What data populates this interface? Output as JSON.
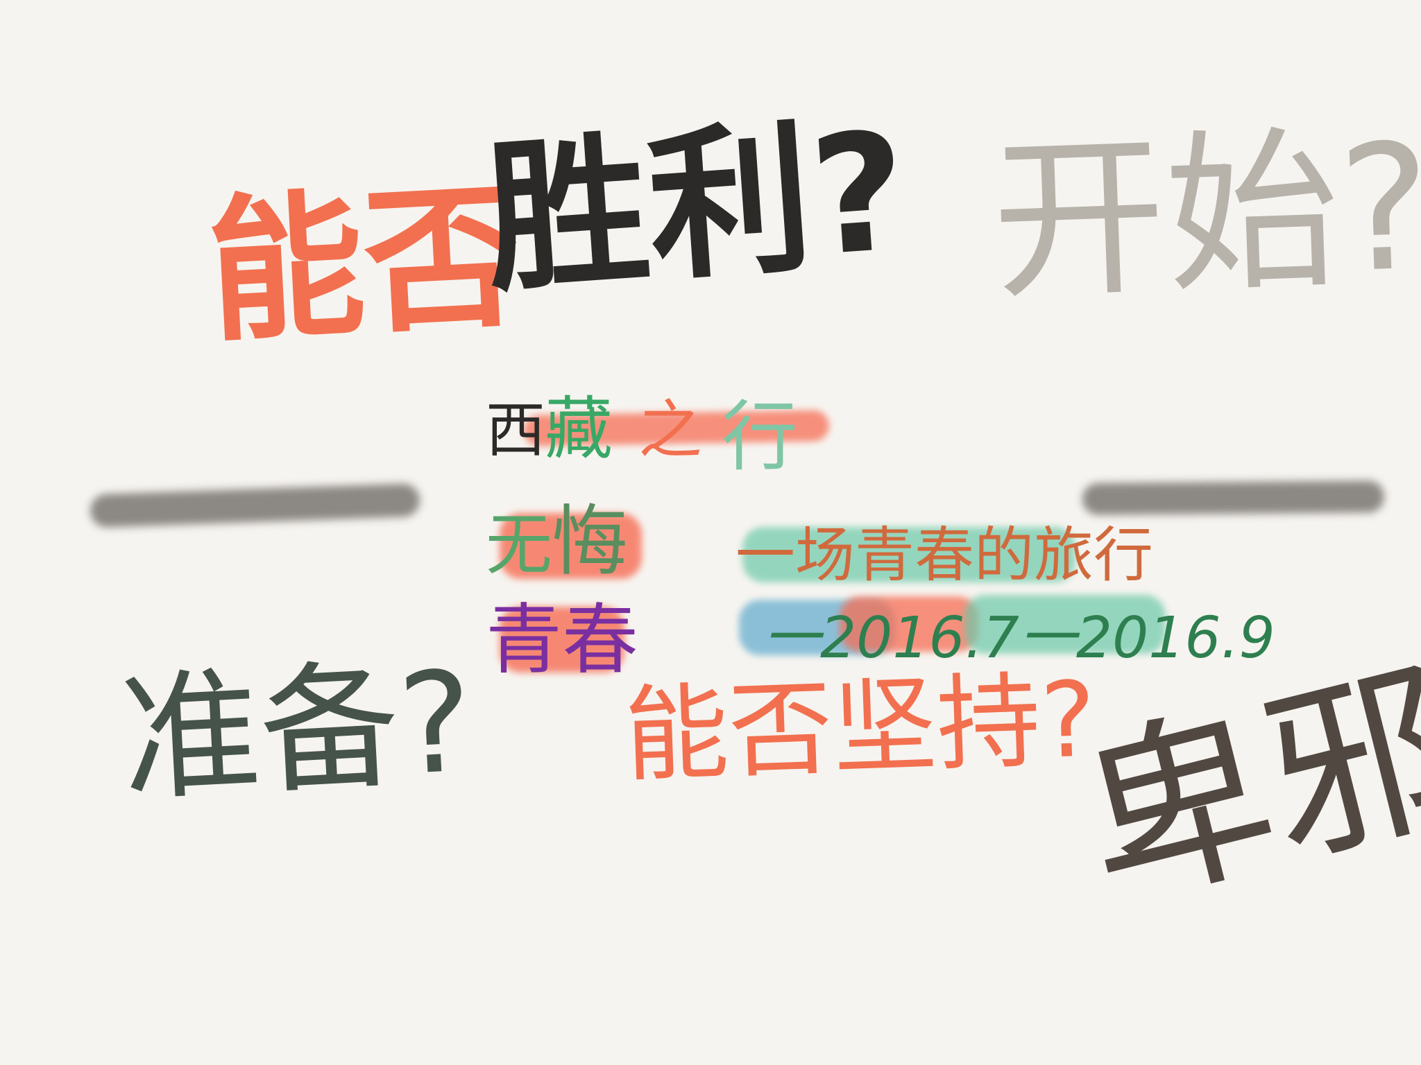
{
  "background": "#f6f4f0",
  "doodles": {
    "shengli_a": {
      "text": "能否",
      "color": "#f2704f"
    },
    "shengli_b": {
      "text": "胜利?",
      "color": "#2c2a28"
    },
    "kaishi": {
      "text": "开始?",
      "color": "#b7b2aa"
    },
    "zhunbei": {
      "text": "准备?",
      "color": "#45534b"
    },
    "jianchi": {
      "text": "能否坚持?",
      "color": "#f2704f"
    },
    "signature": {
      "text": "卑邪",
      "color": "#524842"
    }
  },
  "center": {
    "title_xi": {
      "text": "西",
      "color": "#2c2a28"
    },
    "title_zang": {
      "text": "藏",
      "color": "#38a866"
    },
    "title_zhi": {
      "text": "之",
      "color": "#f2704f"
    },
    "title_xing": {
      "text": "行",
      "color": "#7fc6a6"
    },
    "wuhui_a": {
      "text": "无",
      "color": "#57a56b"
    },
    "wuhui_b": {
      "text": "悔",
      "color": "#5a8e5f"
    },
    "qingchun": {
      "text": "青春",
      "color": "#7a2fa1"
    },
    "journey": {
      "text": "一场青春的旅行",
      "color": "#d06a3d"
    },
    "dates": {
      "text": "一2016.7一2016.9",
      "color": "#2e7f4f"
    }
  },
  "accents": {
    "salmon": "#f66e55",
    "mint": "#6cc9a9",
    "blue": "#5eaacd",
    "gray_stroke": "#7a7672"
  }
}
